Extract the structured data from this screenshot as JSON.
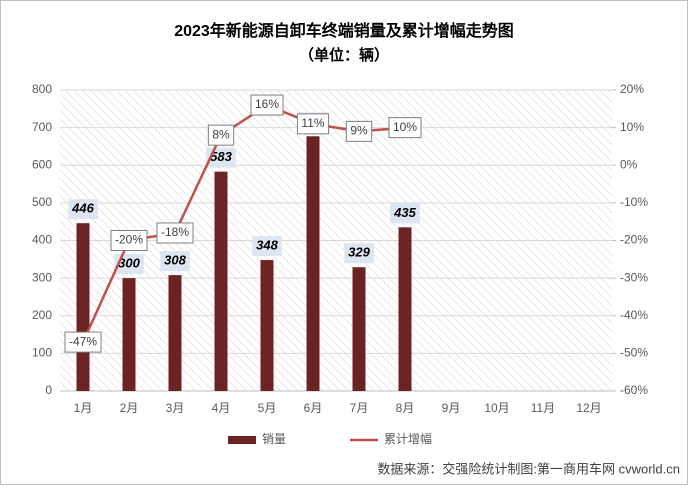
{
  "chart_data": {
    "type": "bar_line",
    "title": "2023年新能源自卸车终端销量及累计增幅走势图",
    "subtitle": "（单位：辆）",
    "source": "数据来源：交强险统计制图:第一商用车网 cvworld.cn",
    "categories": [
      "1月",
      "2月",
      "3月",
      "4月",
      "5月",
      "6月",
      "7月",
      "8月",
      "9月",
      "10月",
      "11月",
      "12月"
    ],
    "series": [
      {
        "name": "销量",
        "type": "bar",
        "color": "#6b2324",
        "values": [
          446,
          300,
          308,
          583,
          348,
          677,
          329,
          435,
          null,
          null,
          null,
          null
        ]
      },
      {
        "name": "累计增幅",
        "type": "line",
        "axis": "y2",
        "color": "#c0504d",
        "values": [
          -47,
          -20,
          -18,
          8,
          16,
          11,
          9,
          10,
          null,
          null,
          null,
          null
        ],
        "value_labels": [
          "-47%",
          "-20%",
          "-18%",
          "8%",
          "16%",
          "11%",
          "9%",
          "10%",
          null,
          null,
          null,
          null
        ]
      }
    ],
    "ylim": [
      0,
      800
    ],
    "yticks": [
      0,
      100,
      200,
      300,
      400,
      500,
      600,
      700,
      800
    ],
    "y2lim": [
      -60,
      20
    ],
    "y2ticks": [
      {
        "value": -60,
        "label": "-60%"
      },
      {
        "value": -50,
        "label": "-50%"
      },
      {
        "value": -40,
        "label": "-40%"
      },
      {
        "value": -30,
        "label": "-30%"
      },
      {
        "value": -20,
        "label": "-20%"
      },
      {
        "value": -10,
        "label": "-10%"
      },
      {
        "value": 0,
        "label": "0%"
      },
      {
        "value": 10,
        "label": "10%"
      },
      {
        "value": 20,
        "label": "20%"
      }
    ],
    "grid": true,
    "legend": "bottom"
  }
}
